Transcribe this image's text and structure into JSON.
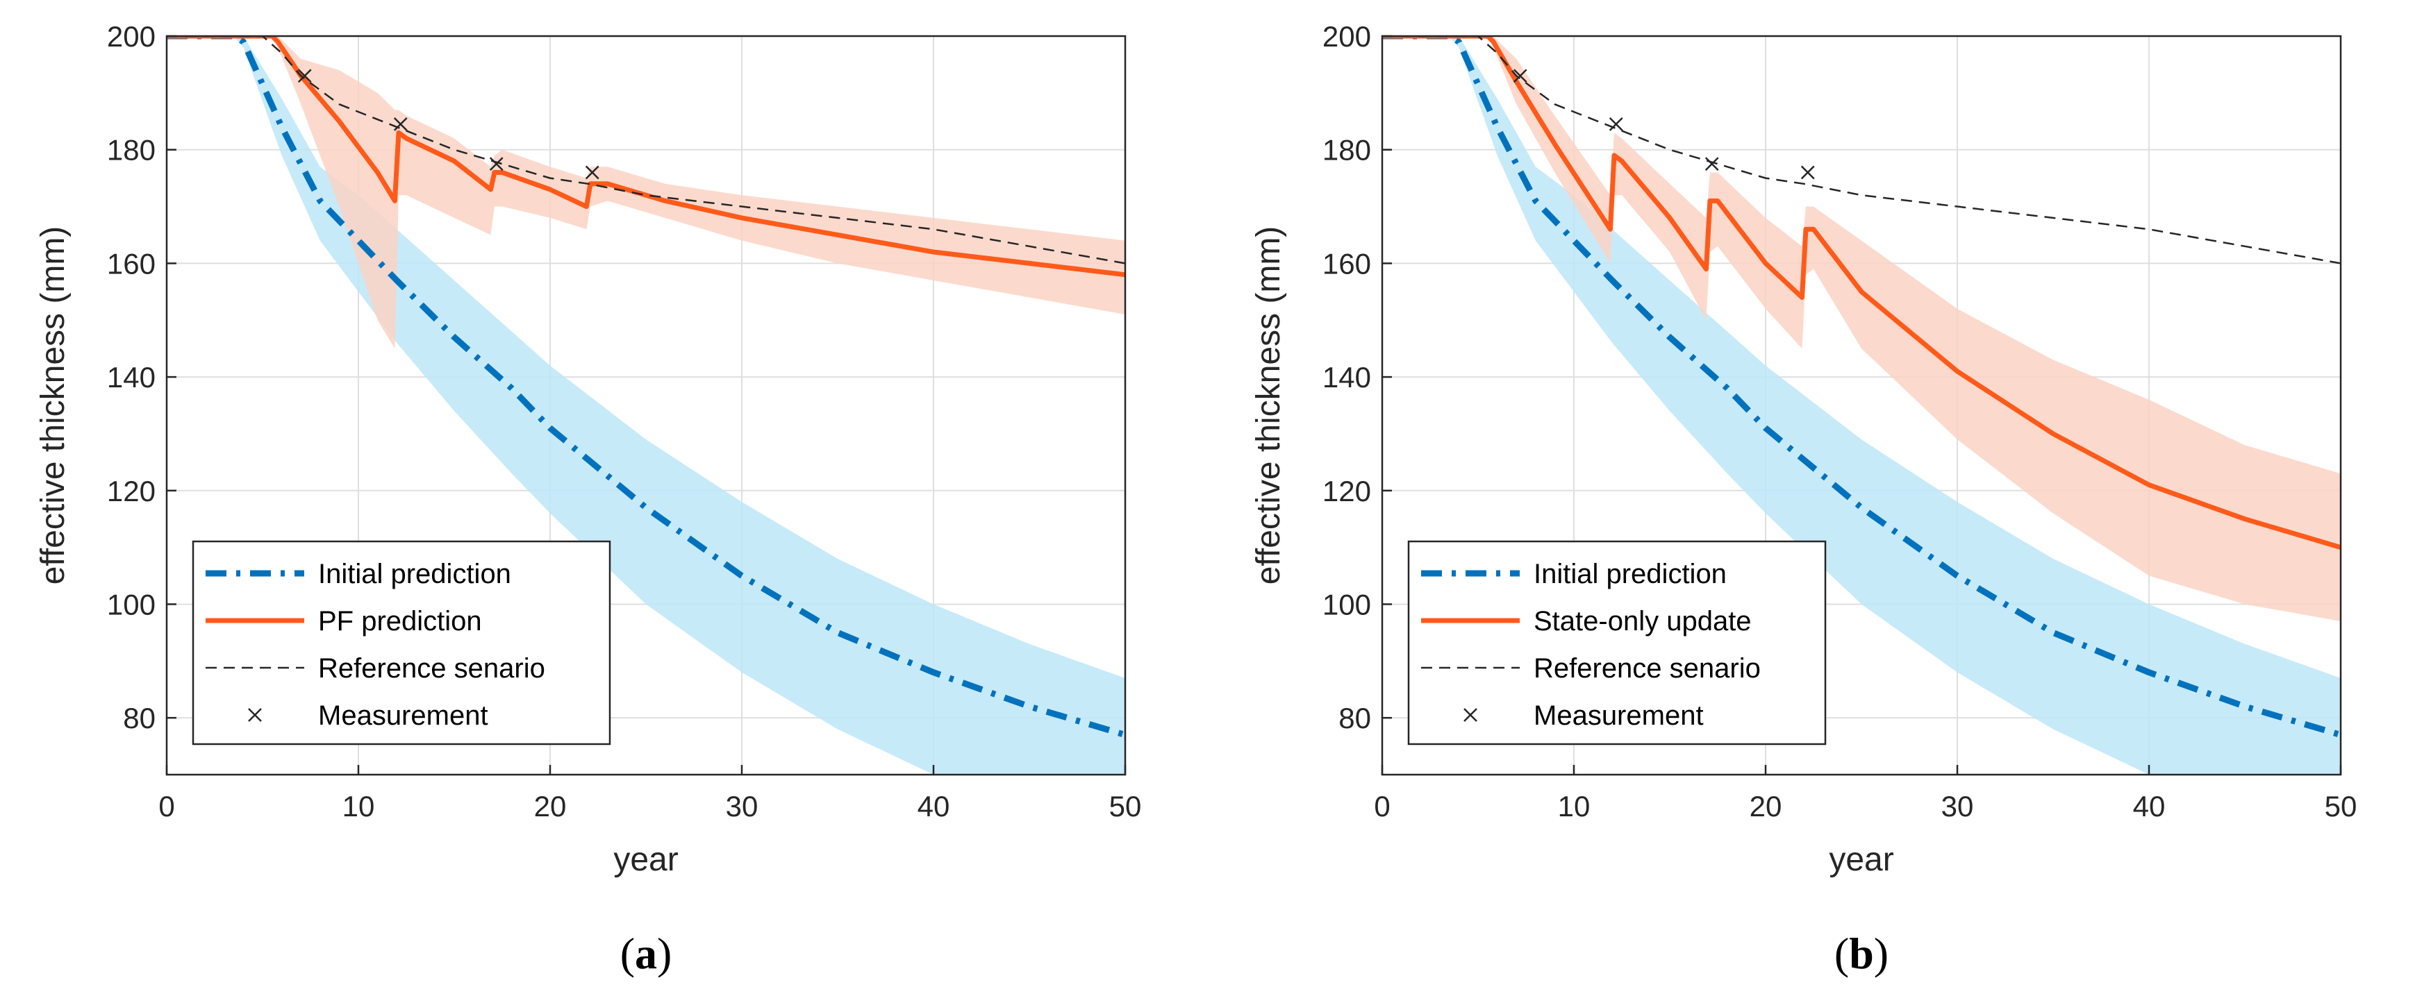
{
  "chart_data": [
    {
      "type": "line",
      "caption": "(a)",
      "caption_letter": "a",
      "xlabel": "year",
      "ylabel": "effective thickness (mm)",
      "xlim": [
        0,
        50
      ],
      "ylim": [
        70,
        200
      ],
      "xticks": [
        0,
        10,
        20,
        30,
        40,
        50
      ],
      "yticks": [
        80,
        100,
        120,
        140,
        160,
        180,
        200
      ],
      "grid": true,
      "legend_position": "bottom-left",
      "series": [
        {
          "name": "Initial prediction",
          "style": "dash-dot",
          "color": "#0072BD",
          "band_color": "#BDE6F8",
          "x": [
            0,
            3.5,
            4,
            6,
            8,
            10,
            12,
            15,
            18,
            20,
            25,
            30,
            35,
            40,
            45,
            50
          ],
          "values": [
            200,
            200,
            199,
            184,
            171,
            164,
            157,
            147,
            138,
            131,
            117,
            105,
            95,
            88,
            82,
            77
          ],
          "band_lower": [
            200,
            200,
            198,
            179,
            164,
            155,
            146,
            134,
            123,
            116,
            100,
            88,
            78,
            70,
            70,
            70
          ],
          "band_upper": [
            200,
            200,
            200,
            189,
            177,
            172,
            166,
            157,
            148,
            142,
            129,
            118,
            108,
            100,
            93,
            87
          ]
        },
        {
          "name": "PF prediction",
          "style": "solid",
          "color": "#FF5A1A",
          "band_color": "#FAD4C4",
          "x": [
            0,
            5.5,
            5.8,
            7,
            9,
            11,
            11.9,
            12.1,
            12.5,
            15,
            16.9,
            17.1,
            17.5,
            20,
            21.9,
            22.1,
            23,
            26,
            30,
            35,
            40,
            45,
            50
          ],
          "values": [
            200,
            200,
            199,
            193,
            185,
            176,
            171,
            183,
            182,
            178,
            173,
            176,
            176,
            173,
            170,
            174,
            174,
            171,
            168,
            165,
            162,
            160,
            158
          ],
          "band_lower": [
            200,
            200,
            198,
            188,
            170,
            150,
            145,
            172,
            172,
            168,
            165,
            170,
            170,
            168,
            166,
            170,
            171,
            168,
            164,
            160,
            157,
            154,
            151
          ],
          "band_upper": [
            200,
            200,
            200,
            196,
            194,
            190,
            187,
            187,
            186,
            182,
            177,
            179,
            180,
            177,
            175,
            177,
            177,
            174,
            172,
            170,
            168,
            166,
            164
          ]
        },
        {
          "name": "Reference senario",
          "style": "dashed",
          "color": "#262626",
          "x": [
            0,
            5,
            6,
            7,
            9,
            12,
            15,
            17,
            20,
            22,
            25,
            30,
            35,
            40,
            45,
            50
          ],
          "values": [
            200,
            200,
            197,
            193,
            188,
            184,
            180,
            178,
            175,
            174,
            172,
            170,
            168,
            166,
            163,
            160
          ]
        },
        {
          "name": "Measurement",
          "style": "marker",
          "marker": "x",
          "color": "#262626",
          "x": [
            7.2,
            12.2,
            17.2,
            22.2
          ],
          "values": [
            193,
            184.5,
            177.5,
            176
          ]
        }
      ]
    },
    {
      "type": "line",
      "caption": "(b)",
      "caption_letter": "b",
      "xlabel": "year",
      "ylabel": "effective thickness (mm)",
      "xlim": [
        0,
        50
      ],
      "ylim": [
        70,
        200
      ],
      "xticks": [
        0,
        10,
        20,
        30,
        40,
        50
      ],
      "yticks": [
        80,
        100,
        120,
        140,
        160,
        180,
        200
      ],
      "grid": true,
      "legend_position": "bottom-left",
      "series": [
        {
          "name": "Initial prediction",
          "style": "dash-dot",
          "color": "#0072BD",
          "band_color": "#BDE6F8",
          "x": [
            0,
            3.5,
            4,
            6,
            8,
            10,
            12,
            15,
            18,
            20,
            25,
            30,
            35,
            40,
            45,
            50
          ],
          "values": [
            200,
            200,
            199,
            184,
            171,
            164,
            157,
            147,
            138,
            131,
            117,
            105,
            95,
            88,
            82,
            77
          ],
          "band_lower": [
            200,
            200,
            198,
            179,
            164,
            155,
            146,
            134,
            123,
            116,
            100,
            88,
            78,
            70,
            70,
            70
          ],
          "band_upper": [
            200,
            200,
            200,
            189,
            177,
            172,
            166,
            157,
            148,
            142,
            129,
            118,
            108,
            100,
            93,
            87
          ]
        },
        {
          "name": "State-only update",
          "style": "solid",
          "color": "#FF5A1A",
          "band_color": "#FAD4C4",
          "x": [
            0,
            5.5,
            5.8,
            7,
            9,
            11.9,
            12.1,
            12.5,
            15,
            16.9,
            17.1,
            17.5,
            20,
            21.9,
            22.1,
            22.5,
            25,
            30,
            35,
            40,
            45,
            50
          ],
          "values": [
            200,
            200,
            199,
            192,
            181,
            166,
            179,
            178,
            168,
            159,
            171,
            171,
            160,
            154,
            166,
            166,
            155,
            141,
            130,
            121,
            115,
            110
          ],
          "band_lower": [
            200,
            200,
            198,
            188,
            176,
            160,
            172,
            172,
            162,
            150,
            162,
            163,
            152,
            145,
            158,
            159,
            145,
            129,
            116,
            105,
            100,
            97
          ],
          "band_upper": [
            200,
            200,
            200,
            196,
            186,
            172,
            183,
            182,
            174,
            168,
            176,
            176,
            168,
            163,
            170,
            170,
            164,
            152,
            143,
            136,
            128,
            123
          ]
        },
        {
          "name": "Reference senario",
          "style": "dashed",
          "color": "#262626",
          "x": [
            0,
            5,
            6,
            7,
            9,
            12,
            15,
            17,
            20,
            22,
            25,
            30,
            35,
            40,
            45,
            50
          ],
          "values": [
            200,
            200,
            197,
            193,
            188,
            184,
            180,
            178,
            175,
            174,
            172,
            170,
            168,
            166,
            163,
            160
          ]
        },
        {
          "name": "Measurement",
          "style": "marker",
          "marker": "x",
          "color": "#262626",
          "x": [
            7.2,
            12.2,
            17.2,
            22.2
          ],
          "values": [
            193,
            184.5,
            177.5,
            176
          ]
        }
      ]
    }
  ]
}
